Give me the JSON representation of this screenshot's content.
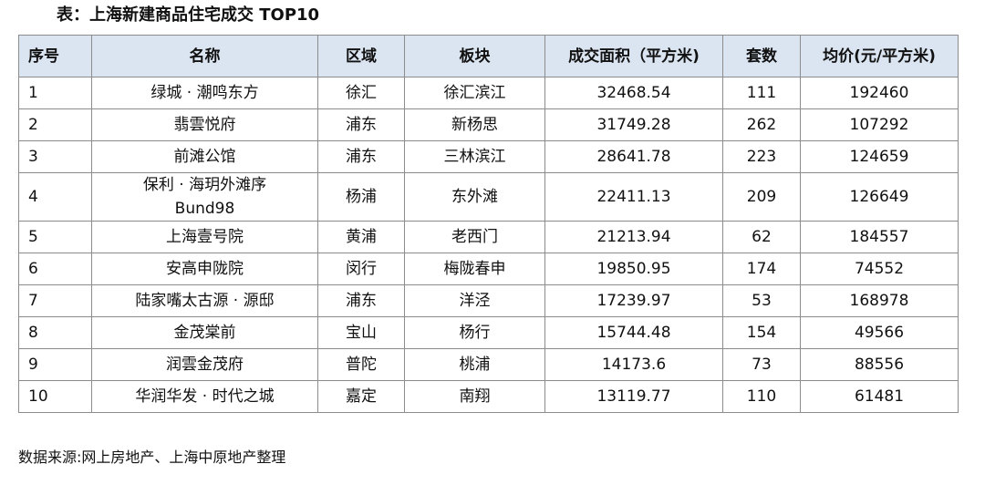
{
  "title": "表：上海新建商品住宅成交 TOP10",
  "table": {
    "columns": [
      "序号",
      "名称",
      "区域",
      "板块",
      "成交面积（平方米)",
      "套数",
      "均价(元/平方米)"
    ],
    "rows": [
      [
        "1",
        "绿城 · 潮鸣东方",
        "徐汇",
        "徐汇滨江",
        "32468.54",
        "111",
        "192460"
      ],
      [
        "2",
        "翡雲悦府",
        "浦东",
        "新杨思",
        "31749.28",
        "262",
        "107292"
      ],
      [
        "3",
        "前滩公馆",
        "浦东",
        "三林滨江",
        "28641.78",
        "223",
        "124659"
      ],
      [
        "4",
        [
          "保利 · 海玥外滩序",
          "Bund98"
        ],
        "杨浦",
        "东外滩",
        "22411.13",
        "209",
        "126649"
      ],
      [
        "5",
        "上海壹号院",
        "黄浦",
        "老西门",
        "21213.94",
        "62",
        "184557"
      ],
      [
        "6",
        "安高申陇院",
        "闵行",
        "梅陇春申",
        "19850.95",
        "174",
        "74552"
      ],
      [
        "7",
        "陆家嘴太古源 · 源邸",
        "浦东",
        "洋泾",
        "17239.97",
        "53",
        "168978"
      ],
      [
        "8",
        "金茂棠前",
        "宝山",
        "杨行",
        "15744.48",
        "154",
        "49566"
      ],
      [
        "9",
        "润雲金茂府",
        "普陀",
        "桃浦",
        "14173.6",
        "73",
        "88556"
      ],
      [
        "10",
        "华润华发 · 时代之城",
        "嘉定",
        "南翔",
        "13119.77",
        "110",
        "61481"
      ]
    ]
  },
  "source": "数据来源:网上房地产、上海中原地产整理"
}
